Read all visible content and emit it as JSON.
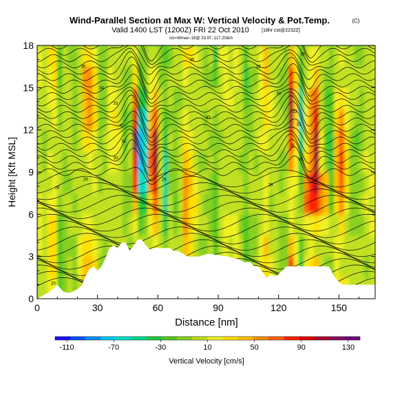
{
  "chart_data": {
    "type": "heatmap",
    "title": "Wind-Parallel Section at Max W: Vertical Velocity & Pot.Temp.",
    "title_mark": "(C)",
    "subtitle": "Valid 1400 LST (1200Z) FRI 22 Oct 2010",
    "subtitle_note": "[18hr cst@2232Z]",
    "subtitle2": "loc=Wmax~18@ 33.97,-117.20&m",
    "xlabel": "Distance [nm]",
    "ylabel": "Height [Kft MSL]",
    "xlim": [
      0,
      168
    ],
    "ylim": [
      0,
      18
    ],
    "x_ticks": [
      0,
      30,
      60,
      90,
      120,
      150
    ],
    "y_ticks": [
      0,
      3,
      6,
      9,
      12,
      15,
      18
    ],
    "colorbar": {
      "label": "Vertical Velocity [cm/s]",
      "ticks": [
        -110,
        -70,
        -30,
        10,
        50,
        90,
        130
      ],
      "range": [
        -120,
        140
      ],
      "colors": [
        "#1a10ff",
        "#0050ff",
        "#0090ff",
        "#00c8ff",
        "#00e0c8",
        "#00d890",
        "#20c840",
        "#50c820",
        "#88d020",
        "#c0e020",
        "#f0f020",
        "#ffe000",
        "#ffc000",
        "#ff9000",
        "#ff6000",
        "#ff2000",
        "#e00000",
        "#b00030",
        "#8a0a60",
        "#6a0a80"
      ]
    },
    "terrain_profile": {
      "distance_nm": [
        0,
        5,
        8,
        10,
        13,
        16,
        19,
        22,
        24,
        26,
        28,
        30,
        32,
        34,
        36,
        38,
        40,
        42,
        44,
        46,
        48,
        50,
        52,
        54,
        56,
        58,
        60,
        63,
        66,
        68,
        70,
        75,
        80,
        85,
        90,
        95,
        100,
        103,
        106,
        108,
        110,
        114,
        116,
        119,
        121,
        124,
        126,
        128,
        132,
        135,
        140,
        145,
        148,
        150,
        152,
        168
      ],
      "height_kft": [
        0,
        0.4,
        0.7,
        1.0,
        0.5,
        0.4,
        0.6,
        0.9,
        1.6,
        2.1,
        2.3,
        2.0,
        2.3,
        2.9,
        3.6,
        3.8,
        3.6,
        4.0,
        4.0,
        3.4,
        3.8,
        4.2,
        4.2,
        3.8,
        3.5,
        3.6,
        3.6,
        3.6,
        3.6,
        3.4,
        3.4,
        3.0,
        3.0,
        3.2,
        3.1,
        3.0,
        2.8,
        2.6,
        2.6,
        2.3,
        2.3,
        1.5,
        1.7,
        1.6,
        1.9,
        2.3,
        2.3,
        2.3,
        2.3,
        2.3,
        2.3,
        2.3,
        1.5,
        1.2,
        1.0,
        1.0
      ]
    },
    "updrafts": [
      {
        "x_nm": 47,
        "w_cms": 135
      },
      {
        "x_nm": 57,
        "w_cms": 100
      },
      {
        "x_nm": 137,
        "w_cms": 135
      },
      {
        "x_nm": 125,
        "w_cms": 90
      },
      {
        "x_nm": 150,
        "w_cms": 70
      },
      {
        "x_nm": 73,
        "w_cms": 50
      },
      {
        "x_nm": 25,
        "w_cms": 55
      }
    ],
    "downdrafts": [
      {
        "x_nm": 51,
        "w_cms": -115
      },
      {
        "x_nm": 44,
        "w_cms": -90
      },
      {
        "x_nm": 62,
        "w_cms": -70
      },
      {
        "x_nm": 130,
        "w_cms": -80
      },
      {
        "x_nm": 144,
        "w_cms": -50
      }
    ],
    "isentrope_labels": [
      {
        "x_nm": 23,
        "y_kft": 16.4,
        "text": "35"
      },
      {
        "x_nm": 32,
        "y_kft": 14.9,
        "text": "34"
      },
      {
        "x_nm": 39,
        "y_kft": 13.8,
        "text": "33"
      },
      {
        "x_nm": 42,
        "y_kft": 12.2,
        "text": "32"
      },
      {
        "x_nm": 43,
        "y_kft": 11.1,
        "text": "31"
      },
      {
        "x_nm": 39,
        "y_kft": 9.9,
        "text": "30"
      },
      {
        "x_nm": 24,
        "y_kft": 8.4,
        "text": "29"
      },
      {
        "x_nm": 10,
        "y_kft": 7.8,
        "text": "28"
      },
      {
        "x_nm": 8,
        "y_kft": 1.0,
        "text": "20"
      },
      {
        "x_nm": 63,
        "y_kft": 8.4,
        "text": "29"
      },
      {
        "x_nm": 77,
        "y_kft": 16.9,
        "text": "35"
      },
      {
        "x_nm": 85,
        "y_kft": 12.8,
        "text": "33"
      },
      {
        "x_nm": 110,
        "y_kft": 16.4,
        "text": "35"
      },
      {
        "x_nm": 120,
        "y_kft": 14.5,
        "text": "34"
      },
      {
        "x_nm": 128,
        "y_kft": 13.2,
        "text": "33"
      },
      {
        "x_nm": 130,
        "y_kft": 12.3,
        "text": "32"
      },
      {
        "x_nm": 127,
        "y_kft": 10.8,
        "text": "31"
      },
      {
        "x_nm": 131,
        "y_kft": 9.8,
        "text": "30"
      },
      {
        "x_nm": 116,
        "y_kft": 8.0,
        "text": "29"
      },
      {
        "x_nm": 132,
        "y_kft": 17.3,
        "text": "35"
      }
    ]
  }
}
